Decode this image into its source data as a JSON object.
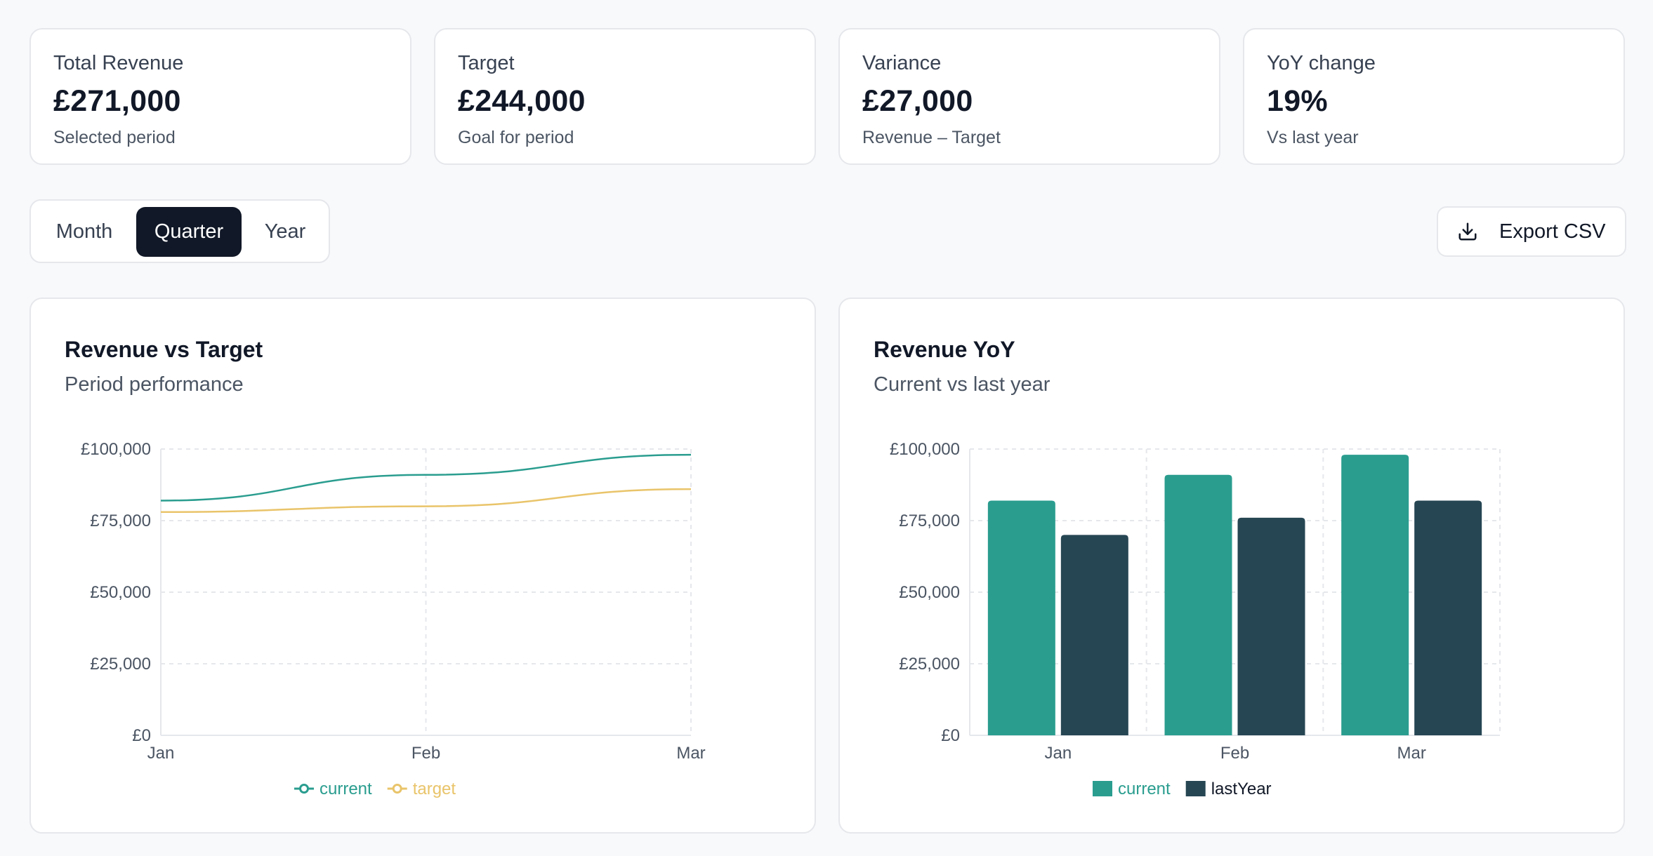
{
  "kpis": [
    {
      "label": "Total Revenue",
      "value": "£271,000",
      "sub": "Selected period"
    },
    {
      "label": "Target",
      "value": "£244,000",
      "sub": "Goal for period"
    },
    {
      "label": "Variance",
      "value": "£27,000",
      "sub": "Revenue – Target"
    },
    {
      "label": "YoY change",
      "value": "19%",
      "sub": "Vs last year"
    }
  ],
  "period_toggle": {
    "options": [
      "Month",
      "Quarter",
      "Year"
    ],
    "selected": "Quarter"
  },
  "export": {
    "label": "Export CSV",
    "icon": "download-icon"
  },
  "colors": {
    "current": "#2a9d8f",
    "target": "#e9c46a",
    "lastYear": "#264653",
    "grid": "#e5e7eb",
    "axis": "#e5e7eb"
  },
  "charts": {
    "revenue_vs_target": {
      "title": "Revenue vs Target",
      "subtitle": "Period performance"
    },
    "revenue_yoy": {
      "title": "Revenue YoY",
      "subtitle": "Current vs last year"
    }
  },
  "chart_data": [
    {
      "type": "line",
      "title": "Revenue vs Target",
      "subtitle": "Period performance",
      "categories": [
        "Jan",
        "Feb",
        "Mar"
      ],
      "series": [
        {
          "name": "current",
          "values": [
            82000,
            91000,
            98000
          ]
        },
        {
          "name": "target",
          "values": [
            78000,
            80000,
            86000
          ]
        }
      ],
      "ylim": [
        0,
        100000
      ],
      "yticks": [
        "£0",
        "£25,000",
        "£50,000",
        "£75,000",
        "£100,000"
      ],
      "grid": true,
      "legend": "bottom-center"
    },
    {
      "type": "bar",
      "title": "Revenue YoY",
      "subtitle": "Current vs last year",
      "categories": [
        "Jan",
        "Feb",
        "Mar"
      ],
      "series": [
        {
          "name": "current",
          "values": [
            82000,
            91000,
            98000
          ]
        },
        {
          "name": "lastYear",
          "values": [
            70000,
            76000,
            82000
          ]
        }
      ],
      "ylim": [
        0,
        100000
      ],
      "yticks": [
        "£0",
        "£25,000",
        "£50,000",
        "£75,000",
        "£100,000"
      ],
      "grid": true,
      "legend": "bottom-center"
    }
  ]
}
